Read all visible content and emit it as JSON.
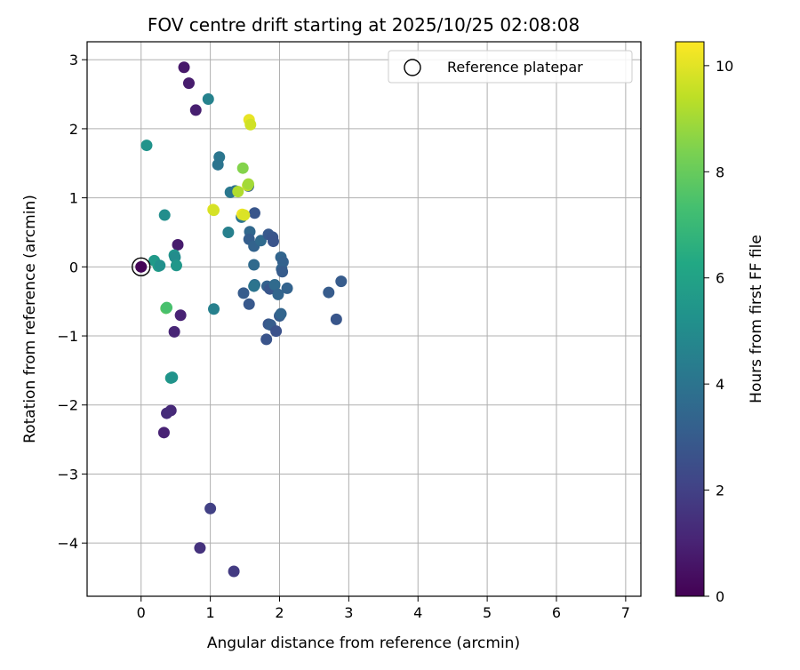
{
  "chart_data": {
    "type": "scatter",
    "title": "FOV centre drift starting at 2025/10/25 02:08:08",
    "xlabel": "Angular distance from reference (arcmin)",
    "ylabel": "Rotation from reference (arcmin)",
    "xlim": [
      -0.78,
      7.22
    ],
    "ylim": [
      -4.77,
      3.26
    ],
    "x_ticks": [
      0,
      1,
      2,
      3,
      4,
      5,
      6,
      7
    ],
    "y_ticks": [
      -4,
      -3,
      -2,
      -1,
      0,
      1,
      2,
      3
    ],
    "grid": true,
    "legend": {
      "position": "top-right",
      "entries": [
        "Reference platepar"
      ]
    },
    "colorbar": {
      "label": "Hours from first FF file",
      "range": [
        0,
        10.45
      ],
      "ticks": [
        0,
        2,
        4,
        6,
        8,
        10
      ],
      "colormap": "viridis"
    },
    "reference_point": {
      "x": 0,
      "y": 0
    },
    "points": [
      {
        "x": 0.0,
        "y": 0.0,
        "c": 0.1
      },
      {
        "x": 0.62,
        "y": 2.89,
        "c": 0.7
      },
      {
        "x": 0.69,
        "y": 2.66,
        "c": 0.8
      },
      {
        "x": 0.79,
        "y": 2.27,
        "c": 0.9
      },
      {
        "x": 0.53,
        "y": 0.32,
        "c": 0.8
      },
      {
        "x": 0.57,
        "y": -0.7,
        "c": 1.0
      },
      {
        "x": 0.48,
        "y": -0.94,
        "c": 1.1
      },
      {
        "x": 0.43,
        "y": -2.08,
        "c": 1.2
      },
      {
        "x": 0.37,
        "y": -2.12,
        "c": 1.3
      },
      {
        "x": 0.33,
        "y": -2.4,
        "c": 1.0
      },
      {
        "x": 1.0,
        "y": -3.5,
        "c": 2.0
      },
      {
        "x": 0.85,
        "y": -4.07,
        "c": 1.5
      },
      {
        "x": 1.34,
        "y": -4.41,
        "c": 1.8
      },
      {
        "x": 0.97,
        "y": 2.43,
        "c": 4.6
      },
      {
        "x": 0.08,
        "y": 1.76,
        "c": 5.3
      },
      {
        "x": 1.13,
        "y": 1.59,
        "c": 4.1
      },
      {
        "x": 1.11,
        "y": 1.48,
        "c": 4.0
      },
      {
        "x": 1.29,
        "y": 1.08,
        "c": 4.2
      },
      {
        "x": 1.36,
        "y": 1.1,
        "c": 3.9
      },
      {
        "x": 1.55,
        "y": 1.17,
        "c": 3.2
      },
      {
        "x": 1.64,
        "y": 0.78,
        "c": 2.8
      },
      {
        "x": 1.45,
        "y": 0.72,
        "c": 4.0
      },
      {
        "x": 1.26,
        "y": 0.5,
        "c": 4.5
      },
      {
        "x": 1.57,
        "y": 0.51,
        "c": 3.5
      },
      {
        "x": 1.56,
        "y": 0.4,
        "c": 3.1
      },
      {
        "x": 1.63,
        "y": 0.3,
        "c": 3.3
      },
      {
        "x": 1.73,
        "y": 0.38,
        "c": 3.6
      },
      {
        "x": 1.84,
        "y": 0.47,
        "c": 2.9
      },
      {
        "x": 1.9,
        "y": 0.43,
        "c": 2.8
      },
      {
        "x": 1.91,
        "y": 0.37,
        "c": 2.7
      },
      {
        "x": 2.02,
        "y": 0.14,
        "c": 3.4
      },
      {
        "x": 2.05,
        "y": 0.07,
        "c": 3.2
      },
      {
        "x": 2.03,
        "y": -0.03,
        "c": 3.3
      },
      {
        "x": 2.04,
        "y": -0.07,
        "c": 3.0
      },
      {
        "x": 1.63,
        "y": 0.03,
        "c": 3.6
      },
      {
        "x": 1.48,
        "y": -0.38,
        "c": 3.0
      },
      {
        "x": 1.56,
        "y": -0.54,
        "c": 2.9
      },
      {
        "x": 1.64,
        "y": -0.26,
        "c": 3.8
      },
      {
        "x": 1.63,
        "y": -0.28,
        "c": 4.0
      },
      {
        "x": 1.82,
        "y": -0.28,
        "c": 3.2
      },
      {
        "x": 1.86,
        "y": -0.32,
        "c": 2.8
      },
      {
        "x": 1.93,
        "y": -0.26,
        "c": 3.6
      },
      {
        "x": 1.98,
        "y": -0.4,
        "c": 3.4
      },
      {
        "x": 2.11,
        "y": -0.31,
        "c": 3.3
      },
      {
        "x": 1.84,
        "y": -0.83,
        "c": 2.8
      },
      {
        "x": 1.87,
        "y": -0.84,
        "c": 3.0
      },
      {
        "x": 1.95,
        "y": -0.93,
        "c": 2.6
      },
      {
        "x": 2.0,
        "y": -0.71,
        "c": 3.0
      },
      {
        "x": 2.02,
        "y": -0.68,
        "c": 3.4
      },
      {
        "x": 1.81,
        "y": -1.05,
        "c": 2.7
      },
      {
        "x": 2.71,
        "y": -0.37,
        "c": 3.0
      },
      {
        "x": 2.82,
        "y": -0.76,
        "c": 2.8
      },
      {
        "x": 2.89,
        "y": -0.21,
        "c": 3.0
      },
      {
        "x": 1.05,
        "y": -0.61,
        "c": 4.5
      },
      {
        "x": 0.34,
        "y": 0.75,
        "c": 5.1
      },
      {
        "x": 0.19,
        "y": 0.09,
        "c": 5.6
      },
      {
        "x": 0.25,
        "y": 0.01,
        "c": 5.9
      },
      {
        "x": 0.27,
        "y": 0.02,
        "c": 5.2
      },
      {
        "x": 0.48,
        "y": 0.17,
        "c": 5.4
      },
      {
        "x": 0.49,
        "y": 0.14,
        "c": 5.0
      },
      {
        "x": 0.51,
        "y": 0.02,
        "c": 5.5
      },
      {
        "x": 0.36,
        "y": -0.6,
        "c": 7.8
      },
      {
        "x": 0.37,
        "y": -0.59,
        "c": 7.4
      },
      {
        "x": 0.43,
        "y": -1.61,
        "c": 5.6
      },
      {
        "x": 0.45,
        "y": -1.6,
        "c": 5.3
      },
      {
        "x": 1.04,
        "y": 0.83,
        "c": 10.1
      },
      {
        "x": 1.05,
        "y": 0.82,
        "c": 9.8
      },
      {
        "x": 1.46,
        "y": 0.76,
        "c": 10.2
      },
      {
        "x": 1.49,
        "y": 0.75,
        "c": 9.9
      },
      {
        "x": 1.4,
        "y": 1.09,
        "c": 9.2
      },
      {
        "x": 1.47,
        "y": 1.43,
        "c": 8.5
      },
      {
        "x": 1.54,
        "y": 1.18,
        "c": 9.4
      },
      {
        "x": 1.55,
        "y": 1.2,
        "c": 9.0
      },
      {
        "x": 1.56,
        "y": 2.13,
        "c": 10.1
      },
      {
        "x": 1.58,
        "y": 2.06,
        "c": 9.7
      }
    ]
  }
}
